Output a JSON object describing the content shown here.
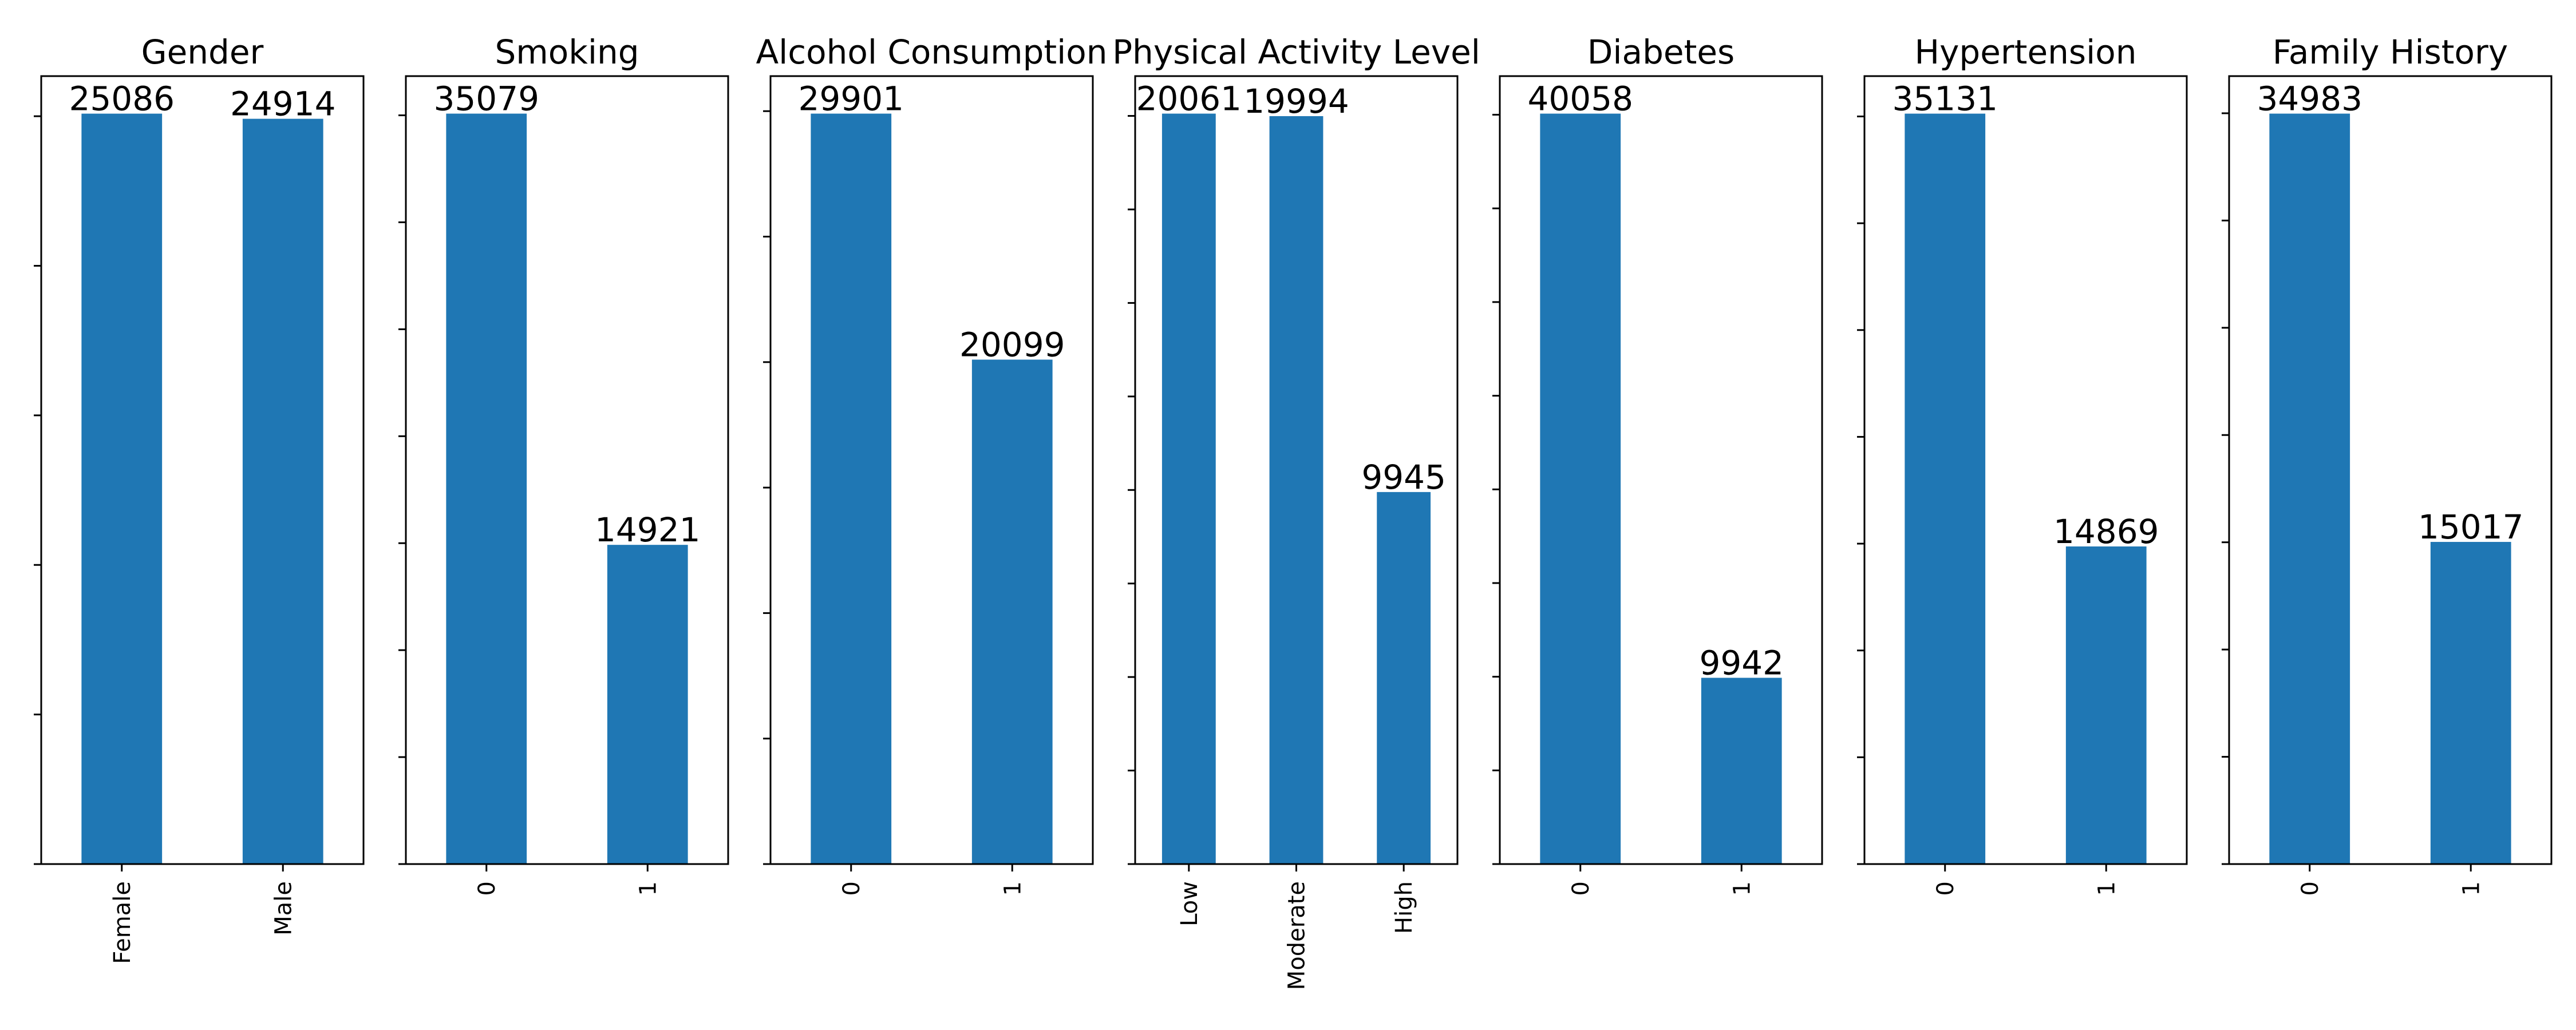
{
  "chart_data": [
    {
      "type": "bar",
      "title": "Gender",
      "categories": [
        "Female",
        "Male"
      ],
      "values": [
        25086,
        24914
      ],
      "ylim": [
        0,
        26341
      ],
      "ytick_step": 5000,
      "bar_color": "#1f77b4"
    },
    {
      "type": "bar",
      "title": "Smoking",
      "categories": [
        "0",
        "1"
      ],
      "values": [
        35079,
        14921
      ],
      "ylim": [
        0,
        36833
      ],
      "ytick_step": 5000,
      "bar_color": "#1f77b4"
    },
    {
      "type": "bar",
      "title": "Alcohol Consumption",
      "categories": [
        "0",
        "1"
      ],
      "values": [
        29901,
        20099
      ],
      "ylim": [
        0,
        31396
      ],
      "ytick_step": 5000,
      "bar_color": "#1f77b4"
    },
    {
      "type": "bar",
      "title": "Physical Activity Level",
      "categories": [
        "Low",
        "Moderate",
        "High"
      ],
      "values": [
        20061,
        19994,
        9945
      ],
      "ylim": [
        0,
        21064
      ],
      "ytick_step": 2500,
      "bar_color": "#1f77b4"
    },
    {
      "type": "bar",
      "title": "Diabetes",
      "categories": [
        "0",
        "1"
      ],
      "values": [
        40058,
        9942
      ],
      "ylim": [
        0,
        42061
      ],
      "ytick_step": 5000,
      "bar_color": "#1f77b4"
    },
    {
      "type": "bar",
      "title": "Hypertension",
      "categories": [
        "0",
        "1"
      ],
      "values": [
        35131,
        14869
      ],
      "ylim": [
        0,
        36888
      ],
      "ytick_step": 5000,
      "bar_color": "#1f77b4"
    },
    {
      "type": "bar",
      "title": "Family History",
      "categories": [
        "0",
        "1"
      ],
      "values": [
        34983,
        15017
      ],
      "ylim": [
        0,
        36732
      ],
      "ytick_step": 5000,
      "bar_color": "#1f77b4"
    }
  ]
}
